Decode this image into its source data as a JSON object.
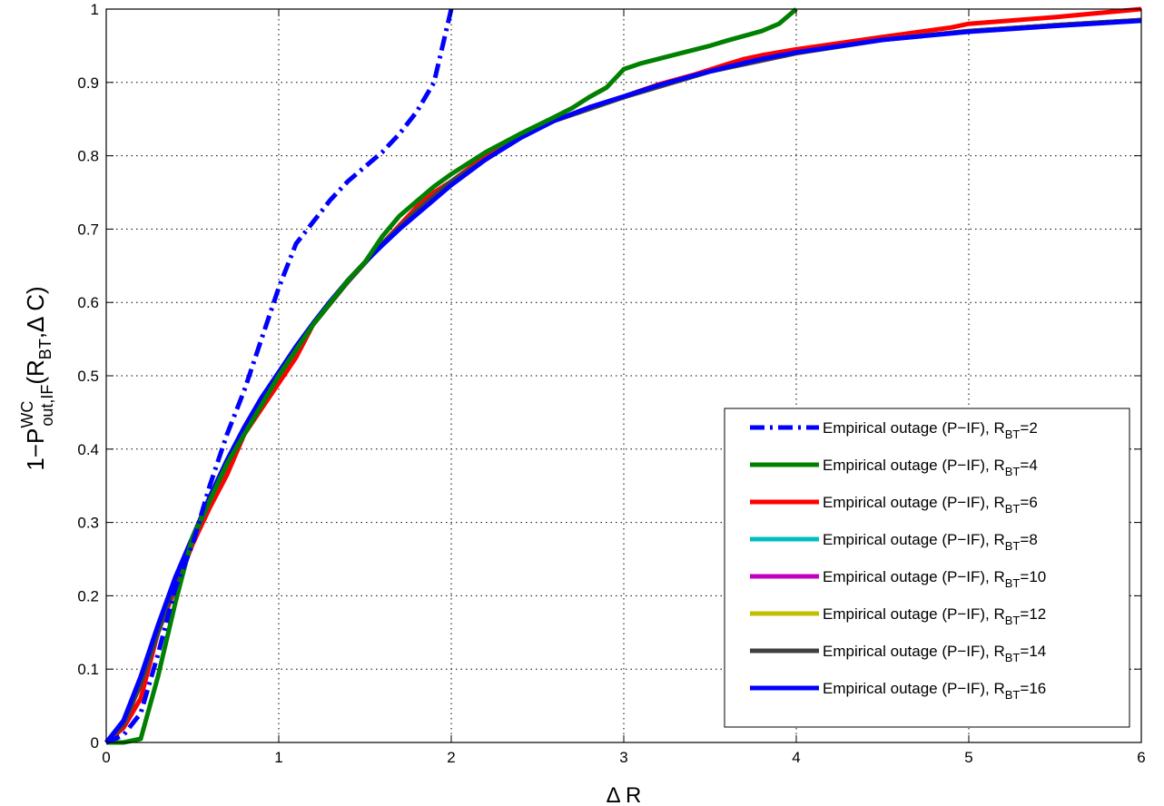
{
  "chart_data": {
    "type": "line",
    "xlabel": "Δ R",
    "ylabel": {
      "prefix": "1−P",
      "sup": "WC",
      "sub": "out,IF",
      "paren_open": "(R",
      "paren_sub": "BT",
      "paren_rest": ",Δ C)"
    },
    "xlim": [
      0,
      6
    ],
    "ylim": [
      0,
      1
    ],
    "x_ticks": [
      0,
      1,
      2,
      3,
      4,
      5,
      6
    ],
    "y_ticks": [
      0,
      0.1,
      0.2,
      0.3,
      0.4,
      0.5,
      0.6,
      0.7,
      0.8,
      0.9,
      1
    ],
    "x_tick_labels": [
      "0",
      "1",
      "2",
      "3",
      "4",
      "5",
      "6"
    ],
    "y_tick_labels": [
      "0",
      "0.1",
      "0.2",
      "0.3",
      "0.4",
      "0.5",
      "0.6",
      "0.7",
      "0.8",
      "0.9",
      "1"
    ],
    "grid": true,
    "legend_position": "bottom-right",
    "series": [
      {
        "legend_prefix": "Empirical outage (P−IF), R",
        "legend_sub": "BT",
        "legend_suffix": "=2",
        "color": "#0000ff",
        "style": "dashdot",
        "points": [
          [
            0,
            0
          ],
          [
            0.1,
            0.01
          ],
          [
            0.2,
            0.04
          ],
          [
            0.3,
            0.12
          ],
          [
            0.4,
            0.21
          ],
          [
            0.5,
            0.27
          ],
          [
            0.6,
            0.35
          ],
          [
            0.7,
            0.42
          ],
          [
            0.8,
            0.48
          ],
          [
            0.9,
            0.55
          ],
          [
            1.0,
            0.62
          ],
          [
            1.1,
            0.68
          ],
          [
            1.2,
            0.71
          ],
          [
            1.3,
            0.74
          ],
          [
            1.4,
            0.765
          ],
          [
            1.5,
            0.785
          ],
          [
            1.6,
            0.805
          ],
          [
            1.7,
            0.83
          ],
          [
            1.8,
            0.86
          ],
          [
            1.9,
            0.9
          ],
          [
            1.95,
            0.95
          ],
          [
            2.0,
            1.0
          ]
        ]
      },
      {
        "legend_prefix": "Empirical outage (P−IF), R",
        "legend_sub": "BT",
        "legend_suffix": "=4",
        "color": "#008000",
        "style": "solid",
        "points": [
          [
            0,
            0
          ],
          [
            0.1,
            0.0
          ],
          [
            0.2,
            0.005
          ],
          [
            0.3,
            0.09
          ],
          [
            0.4,
            0.19
          ],
          [
            0.5,
            0.28
          ],
          [
            0.6,
            0.33
          ],
          [
            0.7,
            0.38
          ],
          [
            0.8,
            0.42
          ],
          [
            0.9,
            0.46
          ],
          [
            1.0,
            0.5
          ],
          [
            1.1,
            0.535
          ],
          [
            1.2,
            0.57
          ],
          [
            1.3,
            0.6
          ],
          [
            1.4,
            0.63
          ],
          [
            1.5,
            0.655
          ],
          [
            1.6,
            0.69
          ],
          [
            1.7,
            0.718
          ],
          [
            1.8,
            0.738
          ],
          [
            1.9,
            0.758
          ],
          [
            2.0,
            0.775
          ],
          [
            2.2,
            0.805
          ],
          [
            2.4,
            0.83
          ],
          [
            2.6,
            0.853
          ],
          [
            2.7,
            0.865
          ],
          [
            2.8,
            0.88
          ],
          [
            2.9,
            0.893
          ],
          [
            3.0,
            0.918
          ],
          [
            3.1,
            0.926
          ],
          [
            3.3,
            0.938
          ],
          [
            3.5,
            0.95
          ],
          [
            3.6,
            0.957
          ],
          [
            3.8,
            0.97
          ],
          [
            3.9,
            0.98
          ],
          [
            4.0,
            1.0
          ]
        ]
      },
      {
        "legend_prefix": "Empirical outage (P−IF), R",
        "legend_sub": "BT",
        "legend_suffix": "=6",
        "color": "#ff0000",
        "style": "solid",
        "points": [
          [
            0,
            0
          ],
          [
            0.1,
            0.02
          ],
          [
            0.2,
            0.06
          ],
          [
            0.3,
            0.15
          ],
          [
            0.4,
            0.21
          ],
          [
            0.5,
            0.27
          ],
          [
            0.6,
            0.32
          ],
          [
            0.7,
            0.365
          ],
          [
            0.8,
            0.42
          ],
          [
            0.9,
            0.455
          ],
          [
            1.0,
            0.49
          ],
          [
            1.1,
            0.525
          ],
          [
            1.2,
            0.57
          ],
          [
            1.3,
            0.6
          ],
          [
            1.4,
            0.63
          ],
          [
            1.5,
            0.655
          ],
          [
            1.6,
            0.68
          ],
          [
            1.7,
            0.705
          ],
          [
            1.8,
            0.73
          ],
          [
            1.9,
            0.75
          ],
          [
            2.0,
            0.765
          ],
          [
            2.2,
            0.8
          ],
          [
            2.4,
            0.826
          ],
          [
            2.6,
            0.848
          ],
          [
            2.8,
            0.866
          ],
          [
            3.0,
            0.881
          ],
          [
            3.2,
            0.897
          ],
          [
            3.4,
            0.91
          ],
          [
            3.6,
            0.925
          ],
          [
            3.7,
            0.932
          ],
          [
            3.8,
            0.937
          ],
          [
            4.0,
            0.945
          ],
          [
            4.5,
            0.962
          ],
          [
            4.9,
            0.975
          ],
          [
            5.0,
            0.98
          ],
          [
            5.5,
            0.989
          ],
          [
            6.0,
            1.0
          ]
        ]
      },
      {
        "legend_prefix": "Empirical outage (P−IF), R",
        "legend_sub": "BT",
        "legend_suffix": "=8",
        "color": "#00bfbf",
        "style": "solid",
        "points": [
          [
            0,
            0
          ],
          [
            0.1,
            0.025
          ],
          [
            0.2,
            0.08
          ],
          [
            0.3,
            0.15
          ],
          [
            0.4,
            0.215
          ],
          [
            0.5,
            0.275
          ],
          [
            0.6,
            0.33
          ],
          [
            0.7,
            0.38
          ],
          [
            0.8,
            0.425
          ],
          [
            0.9,
            0.465
          ],
          [
            1.0,
            0.5
          ],
          [
            1.1,
            0.535
          ],
          [
            1.2,
            0.57
          ],
          [
            1.3,
            0.6
          ],
          [
            1.4,
            0.628
          ],
          [
            1.5,
            0.655
          ],
          [
            1.6,
            0.68
          ],
          [
            1.7,
            0.7
          ],
          [
            1.8,
            0.725
          ],
          [
            1.9,
            0.745
          ],
          [
            2.0,
            0.765
          ],
          [
            2.5,
            0.84
          ],
          [
            3.0,
            0.88
          ],
          [
            3.5,
            0.915
          ],
          [
            4.0,
            0.94
          ],
          [
            4.5,
            0.958
          ],
          [
            5.0,
            0.97
          ],
          [
            5.5,
            0.978
          ],
          [
            6.0,
            0.985
          ]
        ]
      },
      {
        "legend_prefix": "Empirical outage (P−IF), R",
        "legend_sub": "BT",
        "legend_suffix": "=10",
        "color": "#bf00bf",
        "style": "solid",
        "points": [
          [
            0,
            0
          ],
          [
            0.1,
            0.025
          ],
          [
            0.2,
            0.08
          ],
          [
            0.3,
            0.15
          ],
          [
            0.4,
            0.215
          ],
          [
            0.5,
            0.275
          ],
          [
            0.6,
            0.33
          ],
          [
            0.7,
            0.38
          ],
          [
            0.8,
            0.425
          ],
          [
            0.9,
            0.465
          ],
          [
            1.0,
            0.5
          ],
          [
            1.2,
            0.57
          ],
          [
            1.4,
            0.628
          ],
          [
            1.6,
            0.68
          ],
          [
            1.8,
            0.725
          ],
          [
            2.0,
            0.765
          ],
          [
            2.5,
            0.84
          ],
          [
            3.0,
            0.88
          ],
          [
            3.5,
            0.915
          ],
          [
            4.0,
            0.94
          ],
          [
            4.5,
            0.958
          ],
          [
            5.0,
            0.97
          ],
          [
            5.5,
            0.978
          ],
          [
            6.0,
            0.985
          ]
        ]
      },
      {
        "legend_prefix": "Empirical outage (P−IF), R",
        "legend_sub": "BT",
        "legend_suffix": "=12",
        "color": "#bfbf00",
        "style": "solid",
        "points": [
          [
            0,
            0
          ],
          [
            0.1,
            0.025
          ],
          [
            0.2,
            0.08
          ],
          [
            0.3,
            0.15
          ],
          [
            0.4,
            0.215
          ],
          [
            0.5,
            0.275
          ],
          [
            0.6,
            0.33
          ],
          [
            0.7,
            0.38
          ],
          [
            0.8,
            0.425
          ],
          [
            0.9,
            0.465
          ],
          [
            1.0,
            0.5
          ],
          [
            1.2,
            0.57
          ],
          [
            1.4,
            0.628
          ],
          [
            1.6,
            0.68
          ],
          [
            1.8,
            0.725
          ],
          [
            2.0,
            0.765
          ],
          [
            2.5,
            0.84
          ],
          [
            3.0,
            0.88
          ],
          [
            3.5,
            0.915
          ],
          [
            4.0,
            0.94
          ],
          [
            4.5,
            0.958
          ],
          [
            5.0,
            0.97
          ],
          [
            5.5,
            0.978
          ],
          [
            6.0,
            0.985
          ]
        ]
      },
      {
        "legend_prefix": "Empirical outage (P−IF), R",
        "legend_sub": "BT",
        "legend_suffix": "=14",
        "color": "#404040",
        "style": "solid",
        "points": [
          [
            0,
            0
          ],
          [
            0.1,
            0.025
          ],
          [
            0.2,
            0.08
          ],
          [
            0.3,
            0.15
          ],
          [
            0.4,
            0.215
          ],
          [
            0.5,
            0.275
          ],
          [
            0.6,
            0.33
          ],
          [
            0.7,
            0.38
          ],
          [
            0.8,
            0.425
          ],
          [
            0.9,
            0.465
          ],
          [
            1.0,
            0.5
          ],
          [
            1.2,
            0.57
          ],
          [
            1.4,
            0.628
          ],
          [
            1.6,
            0.68
          ],
          [
            1.8,
            0.725
          ],
          [
            2.0,
            0.765
          ],
          [
            2.5,
            0.84
          ],
          [
            3.0,
            0.88
          ],
          [
            3.5,
            0.915
          ],
          [
            4.0,
            0.94
          ],
          [
            4.5,
            0.958
          ],
          [
            5.0,
            0.97
          ],
          [
            5.5,
            0.978
          ],
          [
            6.0,
            0.985
          ]
        ]
      },
      {
        "legend_prefix": "Empirical outage (P−IF), R",
        "legend_sub": "BT",
        "legend_suffix": "=16",
        "color": "#0000ff",
        "style": "solid",
        "points": [
          [
            0,
            0
          ],
          [
            0.1,
            0.03
          ],
          [
            0.2,
            0.09
          ],
          [
            0.3,
            0.16
          ],
          [
            0.4,
            0.225
          ],
          [
            0.5,
            0.28
          ],
          [
            0.6,
            0.335
          ],
          [
            0.7,
            0.385
          ],
          [
            0.8,
            0.43
          ],
          [
            0.9,
            0.47
          ],
          [
            1.0,
            0.505
          ],
          [
            1.1,
            0.54
          ],
          [
            1.2,
            0.572
          ],
          [
            1.3,
            0.602
          ],
          [
            1.4,
            0.63
          ],
          [
            1.5,
            0.655
          ],
          [
            1.6,
            0.678
          ],
          [
            1.7,
            0.7
          ],
          [
            1.8,
            0.72
          ],
          [
            1.9,
            0.74
          ],
          [
            2.0,
            0.76
          ],
          [
            2.2,
            0.795
          ],
          [
            2.4,
            0.824
          ],
          [
            2.6,
            0.848
          ],
          [
            2.8,
            0.866
          ],
          [
            3.0,
            0.881
          ],
          [
            3.2,
            0.896
          ],
          [
            3.4,
            0.909
          ],
          [
            3.6,
            0.921
          ],
          [
            3.8,
            0.932
          ],
          [
            4.0,
            0.941
          ],
          [
            4.5,
            0.958
          ],
          [
            5.0,
            0.969
          ],
          [
            5.5,
            0.977
          ],
          [
            6.0,
            0.984
          ]
        ]
      }
    ]
  }
}
